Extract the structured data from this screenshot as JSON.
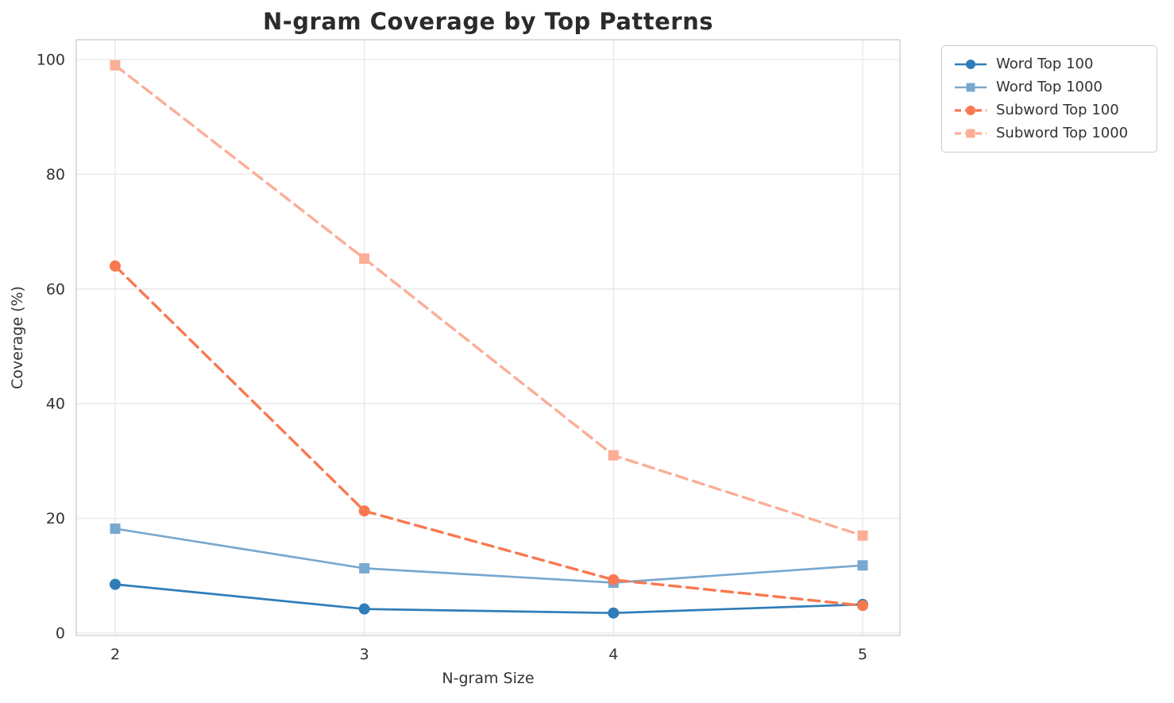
{
  "chart_data": {
    "type": "line",
    "title": "N-gram Coverage by Top Patterns",
    "xlabel": "N-gram Size",
    "ylabel": "Coverage (%)",
    "x": [
      2,
      3,
      4,
      5
    ],
    "xticks": [
      "2",
      "3",
      "4",
      "5"
    ],
    "yticks": [
      0,
      20,
      40,
      60,
      80,
      100
    ],
    "ylim": [
      0,
      103
    ],
    "grid": true,
    "legend_position": "outside-top-right",
    "series": [
      {
        "name": "Word Top 100",
        "values": [
          8.5,
          4.2,
          3.5,
          5.0
        ],
        "color": "#2f7db8",
        "marker": "circle",
        "dash": false
      },
      {
        "name": "Word Top 1000",
        "values": [
          18.2,
          11.3,
          8.8,
          11.8
        ],
        "color": "#79a8cf",
        "marker": "square",
        "dash": false
      },
      {
        "name": "Subword Top 100",
        "values": [
          64.0,
          21.3,
          9.3,
          4.8
        ],
        "color": "#fa7850",
        "marker": "circle",
        "dash": true
      },
      {
        "name": "Subword Top 1000",
        "values": [
          99.0,
          65.3,
          31.0,
          17.0
        ],
        "color": "#fbae96",
        "marker": "square",
        "dash": true
      }
    ],
    "colors": {
      "grid": "#e7e7e7",
      "spine": "#cfcfcf",
      "tick_text": "#333333",
      "title_text": "#2b2b2b"
    }
  }
}
